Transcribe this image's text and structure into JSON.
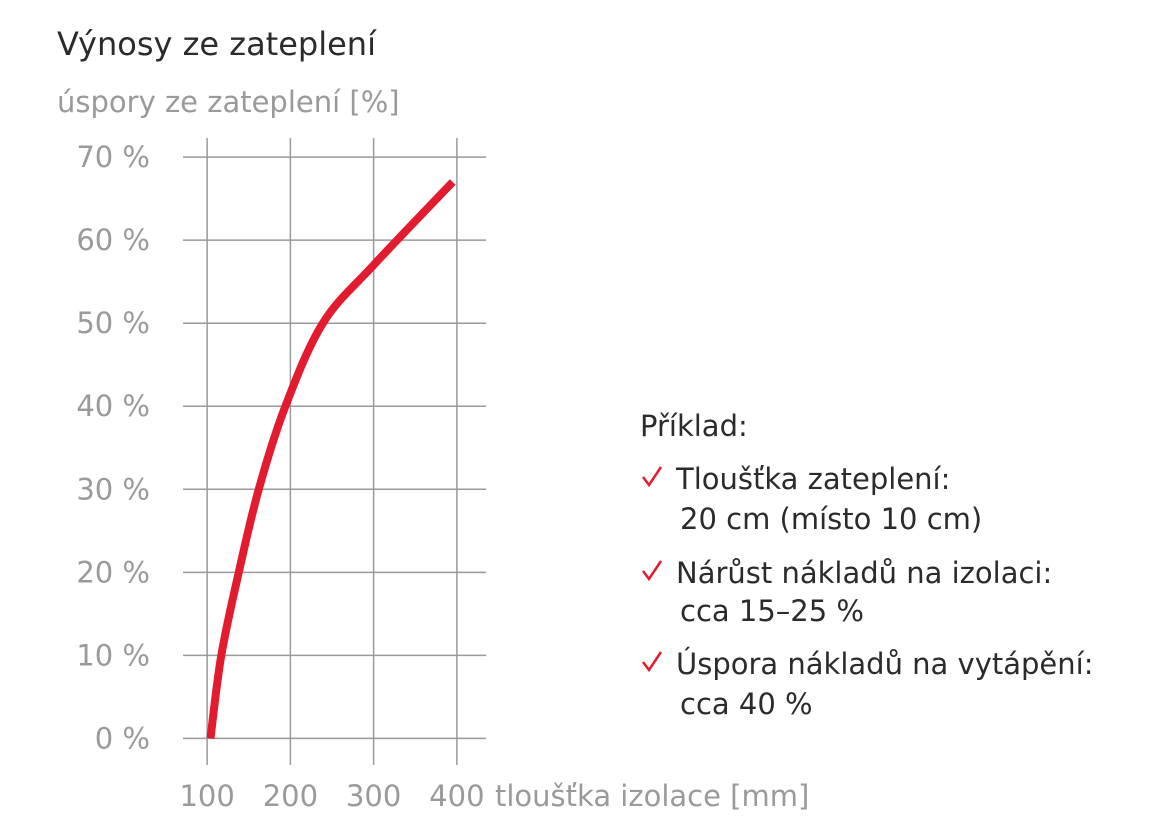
{
  "chart_data": {
    "type": "line",
    "title": "Výnosy ze zateplení",
    "y_label": "úspory ze zateplení [%]",
    "x_label": "tloušťka izolace [mm]",
    "x": [
      104,
      117,
      138,
      162,
      194,
      239,
      300,
      395
    ],
    "values": [
      0,
      10,
      20,
      30,
      40,
      50,
      57,
      67
    ],
    "color": "#e31b2e",
    "xlim": [
      71,
      435
    ],
    "xticks": [
      100,
      200,
      300,
      400
    ],
    "ylim": [
      -3.2,
      72.3
    ],
    "yticks": [
      {
        "value": 0,
        "label": "0 %"
      },
      {
        "value": 10,
        "label": "10 %"
      },
      {
        "value": 20,
        "label": "20 %"
      },
      {
        "value": 30,
        "label": "30 %"
      },
      {
        "value": 40,
        "label": "40 %"
      },
      {
        "value": 50,
        "label": "50 %"
      },
      {
        "value": 60,
        "label": "60 %"
      },
      {
        "value": 70,
        "label": "70 %"
      }
    ],
    "grid": true,
    "annotation": {
      "title": "Příklad:",
      "items": [
        [
          "Tloušťka zateplení:",
          "20 cm (místo 10 cm)"
        ],
        [
          "Nárůst nákladů na izolaci:",
          "cca 15–25 %"
        ],
        [
          "Úspora nákladů na vytápění:",
          "cca 40 %"
        ]
      ]
    }
  }
}
